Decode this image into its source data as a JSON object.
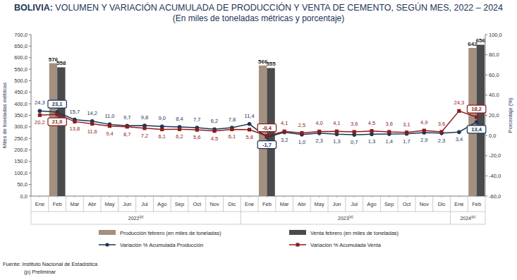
{
  "chart_data": {
    "type": "bar",
    "title": "BOLIVIA: VOLUMEN Y VARIACIÓN ACUMULADA DE PRODUCCIÓN Y VENTA DE CEMENTO, SEGÚN MES, 2022 – 2024",
    "subtitle": "(En miles de toneladas métricas y porcentaje)",
    "y_label": "Miles de toneladas métricas",
    "y2_label": "Porcentaje (%)",
    "source": "Fuente: Instituto Nacional de Estadística",
    "note": "(p) Preliminar",
    "categories": [
      "Ene",
      "Feb",
      "Mar",
      "Abr",
      "May",
      "Jun",
      "Jul",
      "Ago",
      "Sep",
      "Oct",
      "Nov",
      "Dic",
      "Ene",
      "Feb",
      "Mar",
      "Abr",
      "May",
      "Jun",
      "Jul",
      "Ago",
      "Sep",
      "Oct",
      "Nov",
      "Dic",
      "Ene",
      "Feb"
    ],
    "year_labels": [
      "2022(p)",
      "2022(p)",
      "2022(p)",
      "2022(p)",
      "2022(p)",
      "2022(p)",
      "2022(p)",
      "2022(p)",
      "2022(p)",
      "2022(p)",
      "2022(p)",
      "2022(p)",
      "2023(p)",
      "2023(p)",
      "2023(p)",
      "2023(p)",
      "2023(p)",
      "2023(p)",
      "2023(p)",
      "2023(p)",
      "2023(p)",
      "2023(p)",
      "2023(p)",
      "2023(p)",
      "2024(p)",
      "2024(p)"
    ],
    "ylim": [
      0,
      700
    ],
    "yticks": [
      {
        "value": 0,
        "label": "0,0"
      },
      {
        "value": 50,
        "label": "50,0"
      },
      {
        "value": 100,
        "label": "100,0"
      },
      {
        "value": 150,
        "label": "150,0"
      },
      {
        "value": 200,
        "label": "200,0"
      },
      {
        "value": 250,
        "label": "250,0"
      },
      {
        "value": 300,
        "label": "300,0"
      },
      {
        "value": 350,
        "label": "350,0"
      },
      {
        "value": 400,
        "label": "400,0"
      },
      {
        "value": 450,
        "label": "450,0"
      },
      {
        "value": 500,
        "label": "500,0"
      },
      {
        "value": 550,
        "label": "550,0"
      },
      {
        "value": 600,
        "label": "600,0"
      },
      {
        "value": 650,
        "label": "650,0"
      },
      {
        "value": 700,
        "label": "700,0"
      }
    ],
    "y2lim": [
      -60,
      100
    ],
    "y2ticks": [
      {
        "value": -60,
        "label": "-60,0"
      },
      {
        "value": -40,
        "label": "-40,0"
      },
      {
        "value": -20,
        "label": "-20,0"
      },
      {
        "value": 0,
        "label": "0,0"
      },
      {
        "value": 20,
        "label": "20,0"
      },
      {
        "value": 40,
        "label": "40,0"
      },
      {
        "value": 60,
        "label": "60,0"
      },
      {
        "value": 80,
        "label": "80,0"
      },
      {
        "value": 100,
        "label": "100,0"
      }
    ],
    "grid": false,
    "legend": "bottom",
    "data_labels": true,
    "series": [
      {
        "name": "Producción febrero (en miles de toneladas)",
        "type": "bar",
        "color": "#a39080",
        "values": [
          null,
          576,
          null,
          null,
          null,
          null,
          null,
          null,
          null,
          null,
          null,
          null,
          null,
          566,
          null,
          null,
          null,
          null,
          null,
          null,
          null,
          null,
          null,
          null,
          null,
          642
        ]
      },
      {
        "name": "Venta febrero (en miles de toneladas)",
        "type": "bar",
        "color": "#4a4a4c",
        "values": [
          null,
          558,
          null,
          null,
          null,
          null,
          null,
          null,
          null,
          null,
          null,
          null,
          null,
          555,
          null,
          null,
          null,
          null,
          null,
          null,
          null,
          null,
          null,
          null,
          null,
          656
        ]
      },
      {
        "name": "Variación % Acumulada Producción",
        "type": "line",
        "axis": "y2",
        "color": "#1c3557",
        "marker": "circle",
        "values": [
          24.3,
          23.1,
          15.7,
          14.2,
          11.0,
          9.7,
          9.8,
          9.0,
          8.4,
          7.7,
          6.2,
          7.8,
          11.4,
          -1.7,
          3.2,
          1.0,
          2.3,
          1.3,
          0.7,
          1.3,
          1.4,
          1.7,
          2.9,
          2.3,
          3.4,
          13.4
        ],
        "value_labels": [
          "24,3",
          "23,1",
          "15,7",
          "14,2",
          "11,0",
          "9,7",
          "9,8",
          "9,0",
          "8,4",
          "7,7",
          "6,2",
          "7,8",
          "11,4",
          "-1,7",
          "3,2",
          "1,0",
          "2,3",
          "1,3",
          "0,7",
          "1,3",
          "1,4",
          "1,7",
          "2,9",
          "2,3",
          "3,4",
          "13,4"
        ]
      },
      {
        "name": "Variación % Acumulada Venta",
        "type": "line",
        "axis": "y2",
        "color": "#8c1c1c",
        "marker": "square",
        "values": [
          20.2,
          21.0,
          13.8,
          11.6,
          9.4,
          8.7,
          7.2,
          6.1,
          6.2,
          5.6,
          4.5,
          6.1,
          5.8,
          -0.4,
          4.1,
          2.5,
          4.0,
          4.1,
          3.6,
          4.5,
          3.6,
          3.1,
          4.9,
          3.6,
          24.3,
          18.2
        ],
        "value_labels": [
          "20,2",
          "21,0",
          "13,8",
          "11,6",
          "9,4",
          "8,7",
          "7,2",
          "6,1",
          "6,2",
          "5,6",
          "4,5",
          "6,1",
          "5,8",
          "-0,4",
          "4,1",
          "2,5",
          "4,0",
          "4,1",
          "3,6",
          "4,5",
          "3,6",
          "3,1",
          "4,9",
          "3,6",
          "24,3",
          "18,2"
        ]
      }
    ]
  }
}
